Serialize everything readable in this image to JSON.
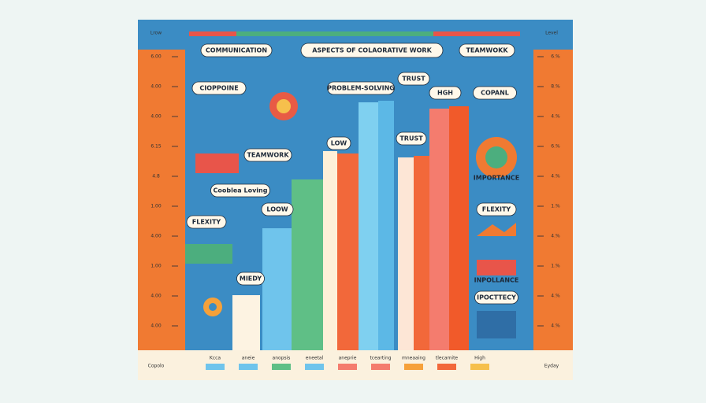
{
  "header": {
    "left": "Lrow",
    "right": "Level"
  },
  "footer": {
    "left": "Copolo",
    "right": "Eyday"
  },
  "title": "ASPECTS OF COLAORATIVE WORK",
  "labels": [
    "COMMUNICATION",
    "TEAMWOKK",
    "CIOPPOINE",
    "PROBLEM-SOLVING",
    "TRUST",
    "HGH",
    "COPANL",
    "TEAMWORK",
    "LOW",
    "TRUST",
    "Cooblea Loving",
    "LOOW",
    "FLEXITY",
    "FLEXITY",
    "MIEDY",
    "IPOCTTECY",
    "IMPORTANCE",
    "INPOLLANCE"
  ],
  "left_axis": [
    "6.00",
    "4.00",
    "4.00",
    "6.15",
    "4.8",
    "1.00",
    "4.00",
    "1.00",
    "4.00",
    "4.00"
  ],
  "right_axis": [
    "6.%",
    "8.%",
    "4.%",
    "6.%",
    "4.%",
    "1.%",
    "4.%",
    "1.%",
    "4.%",
    "4.%"
  ],
  "bottom_labels": [
    "Kcca",
    "aneie",
    "anopsis",
    "eneetal",
    "aneprie",
    "tcearting",
    "mneaaing",
    "tlecamite",
    "High"
  ]
}
